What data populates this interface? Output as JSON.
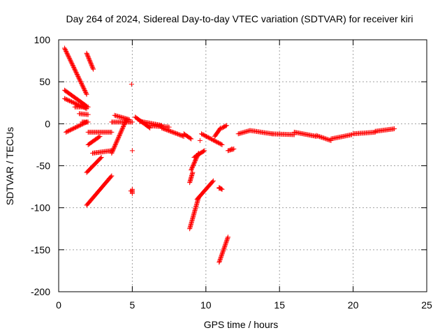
{
  "chart_data": {
    "type": "scatter",
    "title": "Day 264 of 2024, Sidereal Day-to-day VTEC variation (SDTVAR) for receiver kiri",
    "xlabel": "GPS time / hours",
    "ylabel": "SDTVAR / TECUs",
    "xlim": [
      0,
      25
    ],
    "ylim": [
      -200,
      100
    ],
    "xticks": [
      0,
      5,
      10,
      15,
      20,
      25
    ],
    "yticks": [
      -200,
      -150,
      -100,
      -50,
      0,
      50,
      100
    ],
    "grid": true,
    "marker": "+",
    "color": "#ff0000",
    "tracks": [
      {
        "from": [
          0.4,
          90
        ],
        "to": [
          1.9,
          35
        ]
      },
      {
        "from": [
          1.9,
          84
        ],
        "to": [
          2.35,
          65
        ]
      },
      {
        "from": [
          0.4,
          40
        ],
        "to": [
          1.9,
          21
        ]
      },
      {
        "from": [
          0.4,
          30
        ],
        "to": [
          1.9,
          18
        ]
      },
      {
        "from": [
          1.1,
          20
        ],
        "to": [
          2.0,
          20
        ]
      },
      {
        "from": [
          1.4,
          12
        ],
        "to": [
          2.0,
          11
        ]
      },
      {
        "from": [
          0.5,
          -10
        ],
        "to": [
          1.9,
          2
        ]
      },
      {
        "from": [
          1.6,
          2
        ],
        "to": [
          2.0,
          2
        ]
      },
      {
        "from": [
          2.0,
          -10
        ],
        "to": [
          3.6,
          -10
        ]
      },
      {
        "from": [
          2.0,
          -25
        ],
        "to": [
          2.8,
          -15
        ]
      },
      {
        "from": [
          1.9,
          -58
        ],
        "to": [
          2.9,
          -40
        ]
      },
      {
        "from": [
          2.3,
          -35
        ],
        "to": [
          3.6,
          -32
        ]
      },
      {
        "from": [
          1.9,
          -97
        ],
        "to": [
          3.6,
          -62
        ]
      },
      {
        "from": [
          3.6,
          -35
        ],
        "to": [
          4.6,
          5
        ]
      },
      {
        "from": [
          3.6,
          2
        ],
        "to": [
          5.0,
          2
        ]
      },
      {
        "from": [
          3.8,
          10
        ],
        "to": [
          4.8,
          5
        ]
      },
      {
        "from": [
          5.0,
          -78
        ],
        "to": [
          5.0,
          -83
        ]
      },
      {
        "from": [
          5.2,
          8
        ],
        "to": [
          6.2,
          -5
        ]
      },
      {
        "from": [
          5.5,
          3
        ],
        "to": [
          7.0,
          -2
        ]
      },
      {
        "from": [
          6.0,
          -2
        ],
        "to": [
          7.5,
          -4
        ]
      },
      {
        "from": [
          7.0,
          -5
        ],
        "to": [
          8.5,
          -15
        ]
      },
      {
        "from": [
          8.5,
          -12
        ],
        "to": [
          9.0,
          -18
        ]
      },
      {
        "from": [
          8.9,
          -70
        ],
        "to": [
          9.1,
          -58
        ]
      },
      {
        "from": [
          8.9,
          -125
        ],
        "to": [
          9.5,
          -88
        ]
      },
      {
        "from": [
          9.4,
          -90
        ],
        "to": [
          10.5,
          -68
        ]
      },
      {
        "from": [
          9.0,
          -55
        ],
        "to": [
          9.5,
          -35
        ]
      },
      {
        "from": [
          9.2,
          -40
        ],
        "to": [
          9.9,
          -32
        ]
      },
      {
        "from": [
          9.7,
          -12
        ],
        "to": [
          11.1,
          -25
        ]
      },
      {
        "from": [
          10.6,
          -15
        ],
        "to": [
          11.0,
          -5
        ]
      },
      {
        "from": [
          11.1,
          -5
        ],
        "to": [
          11.4,
          -2
        ]
      },
      {
        "from": [
          10.9,
          -165
        ],
        "to": [
          11.5,
          -135
        ]
      },
      {
        "from": [
          10.9,
          -76
        ],
        "to": [
          11.1,
          -78
        ]
      },
      {
        "from": [
          11.5,
          -32
        ],
        "to": [
          11.9,
          -30
        ]
      },
      {
        "from": [
          12.2,
          -12
        ],
        "to": [
          13.0,
          -8
        ]
      },
      {
        "from": [
          13.0,
          -8
        ],
        "to": [
          14.5,
          -12
        ]
      },
      {
        "from": [
          14.5,
          -12
        ],
        "to": [
          16.0,
          -13
        ]
      },
      {
        "from": [
          16.0,
          -10
        ],
        "to": [
          17.5,
          -15
        ]
      },
      {
        "from": [
          17.5,
          -14
        ],
        "to": [
          18.5,
          -20
        ]
      },
      {
        "from": [
          18.5,
          -18
        ],
        "to": [
          19.9,
          -13
        ]
      },
      {
        "from": [
          20.0,
          -12
        ],
        "to": [
          21.5,
          -10
        ]
      },
      {
        "from": [
          21.5,
          -9
        ],
        "to": [
          22.8,
          -6
        ]
      }
    ],
    "outliers": [
      [
        4.95,
        47
      ],
      [
        5.0,
        -32
      ],
      [
        4.9,
        -80
      ],
      [
        9.6,
        -20
      ],
      [
        10.9,
        -77
      ],
      [
        11.75,
        -30
      ]
    ]
  }
}
